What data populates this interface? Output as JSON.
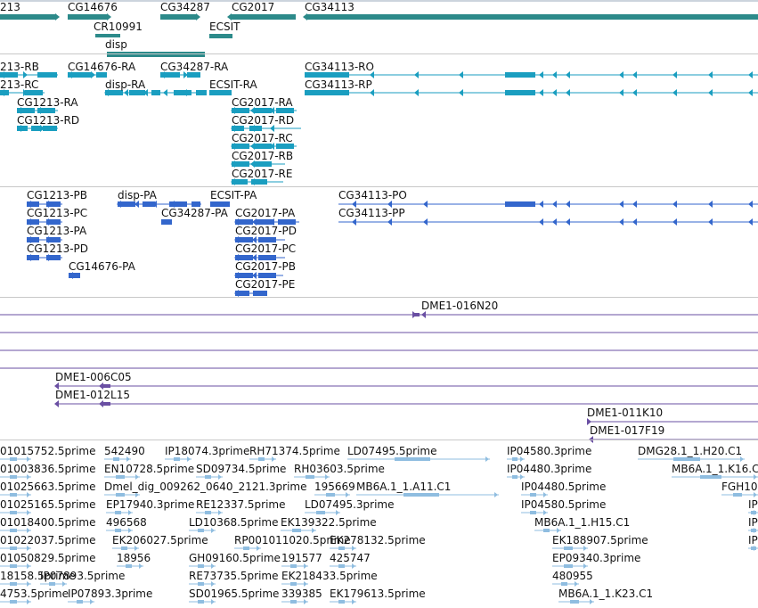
{
  "colors": {
    "gene": "#2c8a8a",
    "transcript": "#1a9ec0",
    "protein": "#3366cc",
    "clone": "#6a4fa3",
    "est": "#8fbde0",
    "separator": "#c8c8c8"
  },
  "genes": [
    "213",
    "CG14676",
    "CG34287",
    "CG2017",
    "CG34113",
    "CR10991",
    "ECSIT",
    "disp"
  ],
  "transcripts": [
    "213-RB",
    "CG14676-RA",
    "CG34287-RA",
    "CG34113-RO",
    "213-RC",
    "disp-RA",
    "ECSIT-RA",
    "CG34113-RP",
    "CG1213-RA",
    "CG2017-RA",
    "CG1213-RD",
    "CG2017-RD",
    "CG2017-RC",
    "CG2017-RB",
    "CG2017-RE"
  ],
  "proteins": [
    "CG1213-PB",
    "disp-PA",
    "ECSIT-PA",
    "CG34113-PO",
    "CG1213-PC",
    "CG34287-PA",
    "CG2017-PA",
    "CG34113-PP",
    "CG1213-PA",
    "CG2017-PD",
    "CG1213-PD",
    "CG2017-PC",
    "CG14676-PA",
    "CG2017-PB",
    "CG2017-PE"
  ],
  "clones": [
    "DME1-016N20",
    "DME1-006C05",
    "DME1-012L15",
    "DME1-011K10",
    "DME1-017F19"
  ],
  "ests": [
    "01015752.5prime",
    "542490",
    "IP18074.3prime",
    "RH71374.5prime",
    "LD07495.5prime",
    "IP04580.3prime",
    "DMG28.1_1.H20.C1",
    "01003836.5prime",
    "EN10728.5prime",
    "SD09734.5prime",
    "RH03603.5prime",
    "IP04480.3prime",
    "MB6A.1_1.K16.C",
    "01025663.5prime",
    "Dmel_dig_009262_0640_2121.3prime",
    "195669",
    "MB6A.1_1.A11.C1",
    "IP04480.5prime",
    "FGH10",
    "01025165.5prime",
    "EP17940.3prime",
    "RE12337.5prime",
    "LD07495.3prime",
    "IP04580.5prime",
    "IP",
    "01018400.5prime",
    "496568",
    "LD10368.5prime",
    "EK139322.5prime",
    "MB6A.1_1.H15.C1",
    "IP",
    "01022037.5prime",
    "EK206027.5prime",
    "RP001011020.5prime",
    "EK278132.5prime",
    "EK188907.5prime",
    "IP",
    "01050829.5prime",
    "18956",
    "GH09160.5prime",
    "191577",
    "425747",
    "EP09340.3prime",
    "18158.5prime",
    "IP07893.5prime",
    "RE73735.5prime",
    "EK218433.5prime",
    "480955",
    "4753.5prime",
    "IP07893.3prime",
    "SD01965.5prime",
    "339385",
    "EK179613.5prime",
    "MB6A.1_1.K23.C1"
  ]
}
